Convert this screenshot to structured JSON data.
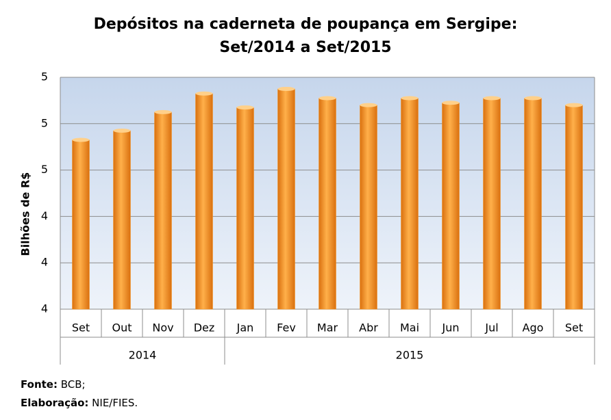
{
  "chart_data": {
    "type": "bar",
    "title": "Depósitos na caderneta de poupança em Sergipe:",
    "subtitle": "Set/2014 a Set/2015",
    "y_label": "Bilhões de R$",
    "categories": [
      "Set",
      "Out",
      "Nov",
      "Dez",
      "Jan",
      "Fev",
      "Mar",
      "Abr",
      "Mai",
      "Jun",
      "Jul",
      "Ago",
      "Set"
    ],
    "groups": [
      {
        "label": "2014",
        "span": 4
      },
      {
        "label": "2015",
        "span": 9
      }
    ],
    "values": [
      4.73,
      4.77,
      4.85,
      4.93,
      4.87,
      4.95,
      4.91,
      4.88,
      4.91,
      4.89,
      4.91,
      4.91,
      4.88
    ],
    "color": "#f7941d",
    "ylim": [
      4.0,
      5.0
    ],
    "yticks": [
      {
        "value": 4.0,
        "label": "4"
      },
      {
        "value": 4.2,
        "label": "4"
      },
      {
        "value": 4.4,
        "label": "4"
      },
      {
        "value": 4.6,
        "label": "5"
      },
      {
        "value": 4.8,
        "label": "5"
      },
      {
        "value": 5.0,
        "label": "5"
      }
    ],
    "grid": true
  },
  "footer": {
    "source_label": "Fonte:",
    "source": "BCB;",
    "credit_label": "Elaboração:",
    "credit": "NIE/FIES."
  }
}
